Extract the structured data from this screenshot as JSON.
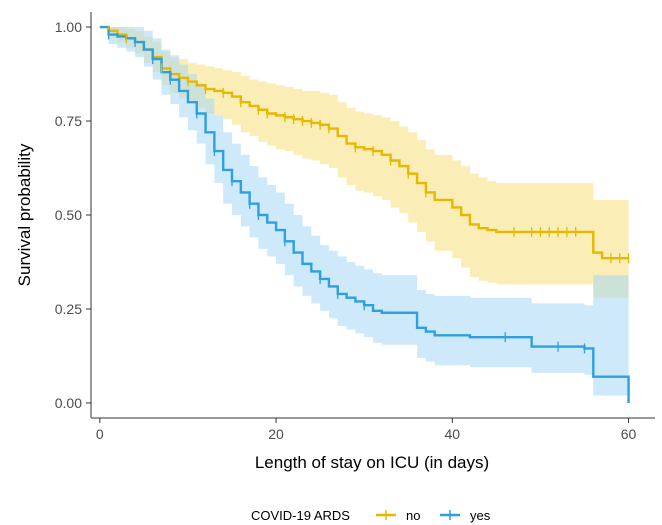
{
  "chart_data": {
    "type": "line",
    "subtype": "kaplan-meier-step",
    "title": "",
    "xlabel": "Length of stay on ICU (in days)",
    "ylabel": "Survival probability",
    "xlim": [
      -1,
      63
    ],
    "ylim": [
      -0.04,
      1.04
    ],
    "x_ticks": [
      0,
      20,
      40,
      60
    ],
    "y_ticks": [
      0.0,
      0.25,
      0.5,
      0.75,
      1.0
    ],
    "x_tick_labels": [
      "0",
      "20",
      "40",
      "60"
    ],
    "y_tick_labels": [
      "0.00",
      "0.25",
      "0.50",
      "0.75",
      "1.00"
    ],
    "grid": false,
    "legend": {
      "title": "COVID-19 ARDS",
      "placement": "bottom",
      "entries": [
        "no",
        "yes"
      ]
    },
    "series": [
      {
        "name": "no",
        "color": "#E7B800",
        "band_color": "#F5DE7A",
        "x": [
          0,
          1,
          2,
          3,
          4,
          5,
          6,
          7,
          8,
          9,
          10,
          11,
          12,
          13,
          14,
          15,
          16,
          17,
          18,
          19,
          20,
          21,
          22,
          23,
          24,
          25,
          26,
          27,
          28,
          29,
          30,
          31,
          32,
          33,
          34,
          35,
          36,
          37,
          38,
          40,
          41,
          42,
          43,
          44,
          45,
          56,
          57,
          60
        ],
        "y": [
          1.0,
          0.99,
          0.98,
          0.97,
          0.96,
          0.94,
          0.92,
          0.89,
          0.875,
          0.865,
          0.855,
          0.845,
          0.835,
          0.83,
          0.825,
          0.815,
          0.8,
          0.79,
          0.78,
          0.77,
          0.765,
          0.76,
          0.755,
          0.75,
          0.745,
          0.74,
          0.73,
          0.71,
          0.69,
          0.68,
          0.675,
          0.67,
          0.66,
          0.645,
          0.63,
          0.61,
          0.585,
          0.56,
          0.54,
          0.52,
          0.5,
          0.475,
          0.465,
          0.46,
          0.455,
          0.4,
          0.385,
          0.385
        ],
        "lower": [
          1.0,
          0.97,
          0.96,
          0.945,
          0.93,
          0.905,
          0.88,
          0.845,
          0.825,
          0.81,
          0.8,
          0.785,
          0.77,
          0.765,
          0.755,
          0.74,
          0.72,
          0.71,
          0.695,
          0.685,
          0.675,
          0.67,
          0.66,
          0.65,
          0.645,
          0.635,
          0.625,
          0.6,
          0.58,
          0.565,
          0.56,
          0.55,
          0.54,
          0.52,
          0.505,
          0.48,
          0.455,
          0.43,
          0.405,
          0.385,
          0.36,
          0.335,
          0.325,
          0.32,
          0.315,
          0.28,
          0.28,
          0.28
        ],
        "upper": [
          1.0,
          1.0,
          1.0,
          0.995,
          0.99,
          0.975,
          0.96,
          0.935,
          0.92,
          0.915,
          0.905,
          0.9,
          0.895,
          0.89,
          0.885,
          0.88,
          0.87,
          0.86,
          0.855,
          0.85,
          0.845,
          0.84,
          0.835,
          0.83,
          0.83,
          0.825,
          0.82,
          0.8,
          0.785,
          0.775,
          0.77,
          0.765,
          0.76,
          0.75,
          0.735,
          0.72,
          0.7,
          0.675,
          0.66,
          0.645,
          0.63,
          0.61,
          0.6,
          0.59,
          0.585,
          0.54,
          0.54,
          0.54
        ],
        "censor_x": [
          1,
          3,
          7,
          10,
          12,
          14,
          16,
          18,
          19,
          21,
          22,
          23,
          24,
          25,
          26,
          29,
          31,
          33,
          35,
          37,
          47,
          49,
          50,
          51,
          52,
          53,
          54,
          58,
          59,
          60
        ]
      },
      {
        "name": "yes",
        "color": "#2E9FDF",
        "band_color": "#A6D8F5",
        "x": [
          0,
          1,
          2,
          3,
          4,
          5,
          6,
          7,
          8,
          9,
          10,
          11,
          12,
          13,
          14,
          15,
          16,
          17,
          18,
          19,
          20,
          21,
          22,
          23,
          24,
          25,
          26,
          27,
          28,
          29,
          30,
          31,
          32,
          36,
          37,
          38,
          42,
          49,
          55,
          56,
          57,
          60
        ],
        "y": [
          1.0,
          0.98,
          0.975,
          0.97,
          0.96,
          0.94,
          0.915,
          0.88,
          0.86,
          0.83,
          0.8,
          0.77,
          0.72,
          0.67,
          0.62,
          0.59,
          0.56,
          0.53,
          0.5,
          0.48,
          0.46,
          0.43,
          0.4,
          0.37,
          0.35,
          0.33,
          0.31,
          0.29,
          0.28,
          0.27,
          0.26,
          0.245,
          0.24,
          0.2,
          0.19,
          0.18,
          0.175,
          0.15,
          0.145,
          0.07,
          0.07,
          0.0
        ],
        "lower": [
          1.0,
          0.955,
          0.945,
          0.935,
          0.92,
          0.895,
          0.86,
          0.82,
          0.795,
          0.76,
          0.725,
          0.69,
          0.635,
          0.585,
          0.53,
          0.5,
          0.47,
          0.44,
          0.41,
          0.39,
          0.37,
          0.34,
          0.31,
          0.285,
          0.265,
          0.245,
          0.225,
          0.205,
          0.195,
          0.185,
          0.175,
          0.16,
          0.155,
          0.12,
          0.11,
          0.1,
          0.095,
          0.08,
          0.075,
          0.02,
          0.02,
          0.02
        ],
        "upper": [
          1.0,
          1.0,
          1.0,
          1.0,
          1.0,
          0.99,
          0.97,
          0.94,
          0.925,
          0.9,
          0.875,
          0.85,
          0.81,
          0.765,
          0.72,
          0.69,
          0.66,
          0.63,
          0.6,
          0.58,
          0.56,
          0.53,
          0.5,
          0.47,
          0.445,
          0.42,
          0.405,
          0.39,
          0.375,
          0.365,
          0.355,
          0.345,
          0.34,
          0.3,
          0.29,
          0.285,
          0.28,
          0.265,
          0.26,
          0.34,
          0.34,
          0.34
        ],
        "censor_x": [
          1,
          4,
          6,
          8,
          11,
          13,
          15,
          17,
          18,
          21,
          25,
          27,
          30,
          46,
          52,
          55
        ]
      }
    ]
  }
}
